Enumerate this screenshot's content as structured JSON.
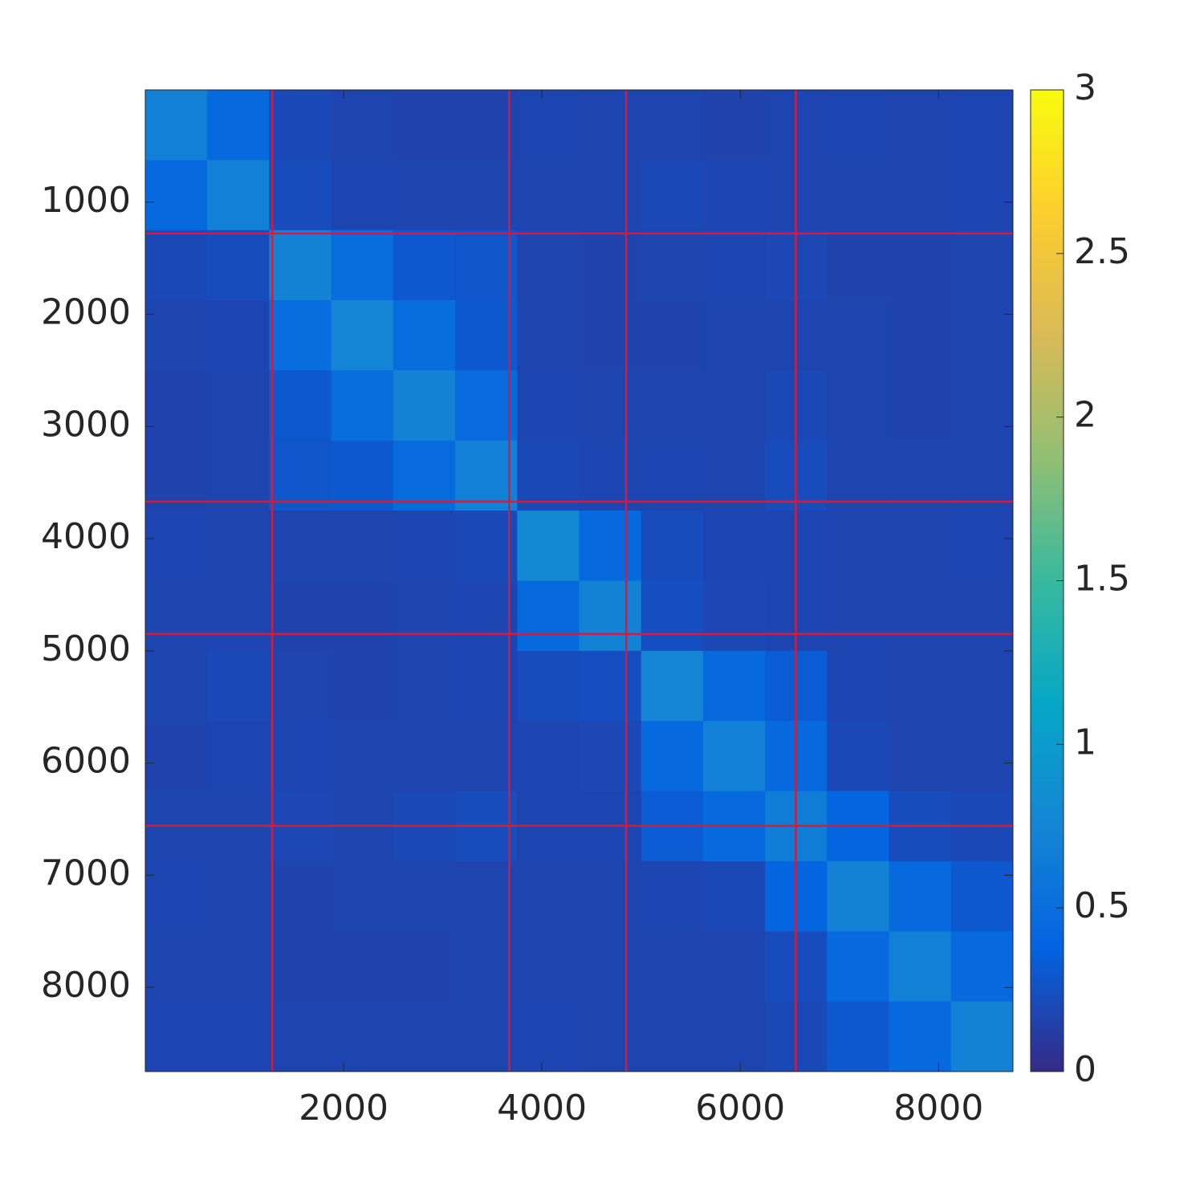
{
  "chart_data": {
    "type": "heatmap",
    "xbins": [
      0,
      625,
      1250,
      1875,
      2500,
      3125,
      3750,
      4375,
      5000,
      5625,
      6250,
      6875,
      7500,
      8125,
      8750
    ],
    "ybins": [
      0,
      625,
      1250,
      1875,
      2500,
      3125,
      3750,
      4375,
      5000,
      5625,
      6250,
      6875,
      7500,
      8125,
      8750
    ],
    "z": [
      [
        0.7,
        0.45,
        0.2,
        0.17,
        0.16,
        0.16,
        0.18,
        0.17,
        0.17,
        0.16,
        0.17,
        0.18,
        0.17,
        0.18
      ],
      [
        0.45,
        0.7,
        0.22,
        0.18,
        0.17,
        0.17,
        0.17,
        0.17,
        0.2,
        0.18,
        0.17,
        0.17,
        0.17,
        0.18
      ],
      [
        0.2,
        0.22,
        0.72,
        0.48,
        0.3,
        0.28,
        0.17,
        0.16,
        0.17,
        0.18,
        0.19,
        0.16,
        0.16,
        0.17
      ],
      [
        0.17,
        0.18,
        0.48,
        0.75,
        0.5,
        0.3,
        0.17,
        0.16,
        0.16,
        0.17,
        0.17,
        0.17,
        0.16,
        0.17
      ],
      [
        0.16,
        0.17,
        0.3,
        0.5,
        0.72,
        0.46,
        0.18,
        0.17,
        0.17,
        0.17,
        0.2,
        0.17,
        0.16,
        0.17
      ],
      [
        0.16,
        0.17,
        0.28,
        0.3,
        0.46,
        0.7,
        0.2,
        0.18,
        0.18,
        0.17,
        0.22,
        0.17,
        0.17,
        0.17
      ],
      [
        0.18,
        0.17,
        0.17,
        0.17,
        0.18,
        0.2,
        0.78,
        0.45,
        0.22,
        0.18,
        0.18,
        0.17,
        0.17,
        0.18
      ],
      [
        0.17,
        0.17,
        0.16,
        0.16,
        0.17,
        0.18,
        0.45,
        0.72,
        0.24,
        0.19,
        0.18,
        0.17,
        0.17,
        0.17
      ],
      [
        0.17,
        0.2,
        0.17,
        0.16,
        0.17,
        0.18,
        0.22,
        0.24,
        0.75,
        0.45,
        0.32,
        0.18,
        0.17,
        0.17
      ],
      [
        0.16,
        0.18,
        0.18,
        0.17,
        0.17,
        0.17,
        0.18,
        0.19,
        0.45,
        0.7,
        0.45,
        0.2,
        0.17,
        0.17
      ],
      [
        0.17,
        0.17,
        0.19,
        0.17,
        0.2,
        0.22,
        0.18,
        0.18,
        0.32,
        0.45,
        0.65,
        0.4,
        0.22,
        0.2
      ],
      [
        0.18,
        0.17,
        0.16,
        0.17,
        0.17,
        0.17,
        0.17,
        0.17,
        0.18,
        0.2,
        0.4,
        0.72,
        0.45,
        0.3
      ],
      [
        0.17,
        0.17,
        0.16,
        0.16,
        0.16,
        0.17,
        0.17,
        0.17,
        0.17,
        0.17,
        0.22,
        0.45,
        0.7,
        0.45
      ],
      [
        0.18,
        0.18,
        0.17,
        0.17,
        0.17,
        0.17,
        0.18,
        0.17,
        0.17,
        0.17,
        0.2,
        0.3,
        0.45,
        0.72
      ]
    ],
    "xlim": [
      0,
      8750
    ],
    "ylim": [
      0,
      8750
    ],
    "xticks": [
      2000,
      4000,
      6000,
      8000
    ],
    "yticks": [
      1000,
      2000,
      3000,
      4000,
      5000,
      6000,
      7000,
      8000
    ],
    "clim": [
      0,
      3
    ],
    "cticks": [
      0,
      0.5,
      1,
      1.5,
      2,
      2.5,
      3
    ],
    "colormap": [
      "#352a87",
      "#0363e1",
      "#1485d4",
      "#06a7c6",
      "#38b99e",
      "#92bf73",
      "#d9ba56",
      "#fcce2e",
      "#f9fb0e"
    ],
    "boundaries": [
      1280,
      3670,
      4850,
      6560
    ],
    "boundary_color": "#d6193c"
  }
}
